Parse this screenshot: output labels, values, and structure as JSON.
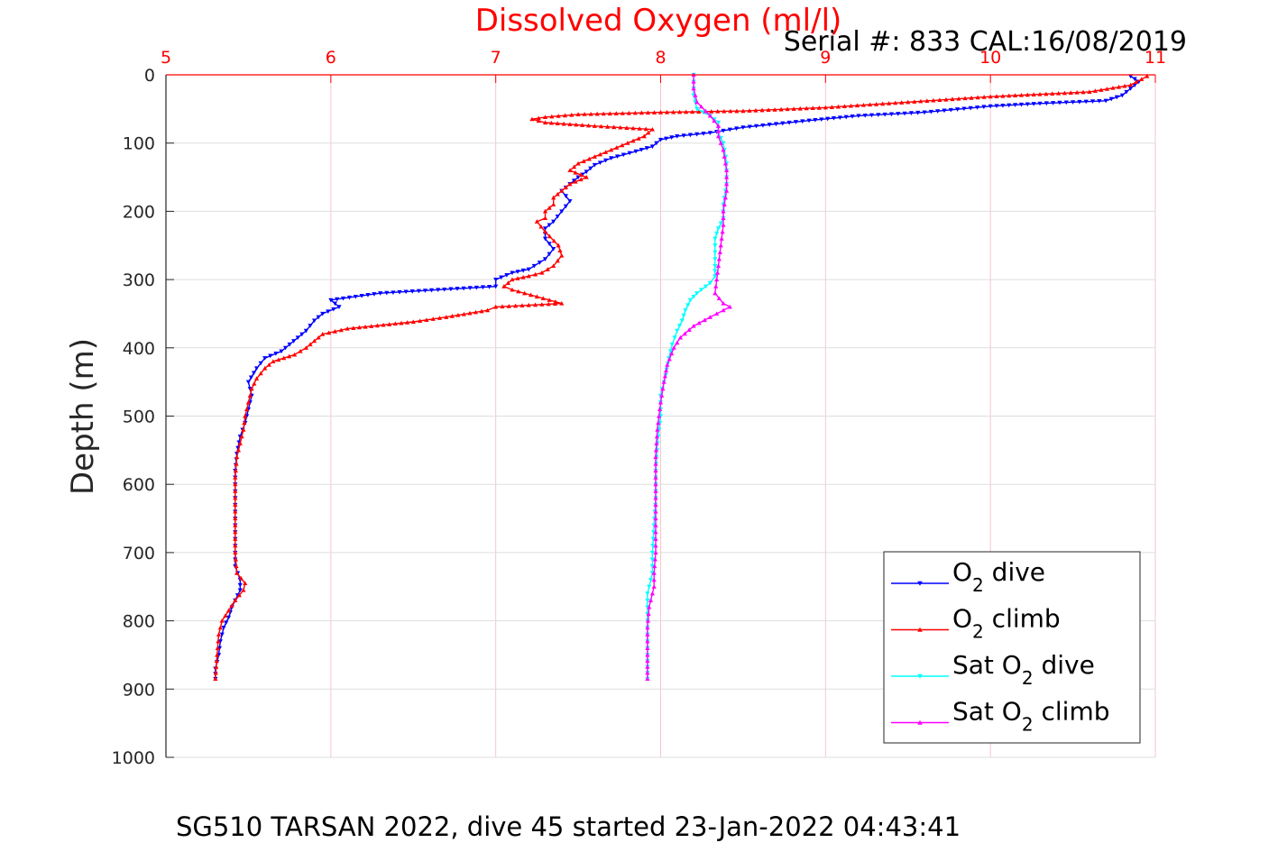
{
  "chart_data": {
    "type": "line",
    "title": "Dissolved Oxygen (ml/l)",
    "serial_note": "Serial #: 833  CAL:16/08/2019",
    "ylabel": "Depth (m)",
    "xlabel": "",
    "footer": "SG510 TARSAN 2022, dive 45 started 23-Jan-2022 04:43:41",
    "xlim": [
      5,
      11
    ],
    "ylim": [
      0,
      1000
    ],
    "y_reversed": true,
    "x_axis_position": "top",
    "grid": true,
    "xticks": [
      "5",
      "6",
      "7",
      "8",
      "9",
      "10",
      "11"
    ],
    "yticks": [
      "0",
      "100",
      "200",
      "300",
      "400",
      "500",
      "600",
      "700",
      "800",
      "900",
      "1000"
    ],
    "legend_position": "bottom-right",
    "legend": [
      {
        "base": "O",
        "sub": "2",
        "prefix": "",
        "suffix": " dive"
      },
      {
        "base": "O",
        "sub": "2",
        "prefix": "",
        "suffix": " climb"
      },
      {
        "base": "O",
        "sub": "2",
        "prefix": "Sat ",
        "suffix": " dive"
      },
      {
        "base": "O",
        "sub": "2",
        "prefix": "Sat ",
        "suffix": " climb"
      }
    ],
    "series": [
      {
        "color": "#0000ff",
        "marker": "triangle-down",
        "points": [
          [
            10.85,
            2
          ],
          [
            10.9,
            10
          ],
          [
            10.85,
            20
          ],
          [
            10.8,
            30
          ],
          [
            10.7,
            38
          ],
          [
            10.3,
            42
          ],
          [
            10.0,
            46
          ],
          [
            9.6,
            55
          ],
          [
            9.2,
            60
          ],
          [
            8.9,
            67
          ],
          [
            8.7,
            72
          ],
          [
            8.5,
            77
          ],
          [
            8.3,
            85
          ],
          [
            8.1,
            90
          ],
          [
            8.0,
            95
          ],
          [
            7.95,
            105
          ],
          [
            7.85,
            112
          ],
          [
            7.7,
            122
          ],
          [
            7.6,
            132
          ],
          [
            7.55,
            142
          ],
          [
            7.5,
            150
          ],
          [
            7.45,
            160
          ],
          [
            7.4,
            170
          ],
          [
            7.45,
            185
          ],
          [
            7.4,
            200
          ],
          [
            7.35,
            215
          ],
          [
            7.3,
            225
          ],
          [
            7.3,
            240
          ],
          [
            7.35,
            255
          ],
          [
            7.3,
            270
          ],
          [
            7.2,
            285
          ],
          [
            7.1,
            290
          ],
          [
            7.0,
            300
          ],
          [
            7.0,
            310
          ],
          [
            6.3,
            320
          ],
          [
            6.0,
            330
          ],
          [
            6.05,
            340
          ],
          [
            5.95,
            350
          ],
          [
            5.9,
            360
          ],
          [
            5.85,
            375
          ],
          [
            5.8,
            385
          ],
          [
            5.75,
            395
          ],
          [
            5.7,
            405
          ],
          [
            5.6,
            415
          ],
          [
            5.55,
            430
          ],
          [
            5.5,
            450
          ],
          [
            5.52,
            470
          ],
          [
            5.5,
            490
          ],
          [
            5.48,
            510
          ],
          [
            5.45,
            530
          ],
          [
            5.43,
            555
          ],
          [
            5.42,
            580
          ],
          [
            5.42,
            600
          ],
          [
            5.42,
            630
          ],
          [
            5.42,
            660
          ],
          [
            5.42,
            690
          ],
          [
            5.42,
            720
          ],
          [
            5.45,
            740
          ],
          [
            5.45,
            755
          ],
          [
            5.42,
            770
          ],
          [
            5.4,
            780
          ],
          [
            5.38,
            795
          ],
          [
            5.35,
            810
          ],
          [
            5.33,
            830
          ],
          [
            5.32,
            850
          ],
          [
            5.3,
            870
          ],
          [
            5.3,
            885
          ]
        ]
      },
      {
        "color": "#ff0000",
        "marker": "triangle-up",
        "points": [
          [
            10.95,
            2
          ],
          [
            10.85,
            15
          ],
          [
            10.6,
            25
          ],
          [
            10.0,
            32
          ],
          [
            9.5,
            40
          ],
          [
            9.0,
            48
          ],
          [
            8.5,
            53
          ],
          [
            8.0,
            55
          ],
          [
            7.5,
            58
          ],
          [
            7.3,
            62
          ],
          [
            7.22,
            65
          ],
          [
            7.3,
            70
          ],
          [
            7.6,
            75
          ],
          [
            7.95,
            80
          ],
          [
            7.9,
            90
          ],
          [
            7.8,
            100
          ],
          [
            7.7,
            110
          ],
          [
            7.6,
            120
          ],
          [
            7.5,
            130
          ],
          [
            7.45,
            140
          ],
          [
            7.55,
            150
          ],
          [
            7.45,
            160
          ],
          [
            7.4,
            170
          ],
          [
            7.35,
            180
          ],
          [
            7.35,
            190
          ],
          [
            7.3,
            200
          ],
          [
            7.3,
            210
          ],
          [
            7.25,
            215
          ],
          [
            7.3,
            230
          ],
          [
            7.38,
            250
          ],
          [
            7.4,
            265
          ],
          [
            7.35,
            280
          ],
          [
            7.28,
            290
          ],
          [
            7.2,
            295
          ],
          [
            7.1,
            300
          ],
          [
            7.05,
            310
          ],
          [
            7.1,
            315
          ],
          [
            7.4,
            335
          ],
          [
            7.0,
            340
          ],
          [
            6.95,
            345
          ],
          [
            6.7,
            355
          ],
          [
            6.5,
            362
          ],
          [
            6.1,
            372
          ],
          [
            5.95,
            380
          ],
          [
            5.9,
            390
          ],
          [
            5.85,
            400
          ],
          [
            5.78,
            410
          ],
          [
            5.65,
            420
          ],
          [
            5.6,
            430
          ],
          [
            5.55,
            445
          ],
          [
            5.52,
            460
          ],
          [
            5.5,
            480
          ],
          [
            5.48,
            500
          ],
          [
            5.47,
            520
          ],
          [
            5.45,
            540
          ],
          [
            5.43,
            560
          ],
          [
            5.42,
            590
          ],
          [
            5.42,
            620
          ],
          [
            5.42,
            660
          ],
          [
            5.42,
            700
          ],
          [
            5.43,
            730
          ],
          [
            5.48,
            745
          ],
          [
            5.47,
            755
          ],
          [
            5.42,
            770
          ],
          [
            5.38,
            785
          ],
          [
            5.34,
            800
          ],
          [
            5.32,
            820
          ],
          [
            5.31,
            850
          ],
          [
            5.3,
            885
          ]
        ]
      },
      {
        "color": "#00ffff",
        "marker": "triangle-down",
        "points": [
          [
            8.2,
            0
          ],
          [
            8.2,
            30
          ],
          [
            8.22,
            50
          ],
          [
            8.3,
            60
          ],
          [
            8.35,
            70
          ],
          [
            8.35,
            85
          ],
          [
            8.38,
            100
          ],
          [
            8.4,
            130
          ],
          [
            8.4,
            160
          ],
          [
            8.38,
            190
          ],
          [
            8.38,
            210
          ],
          [
            8.35,
            225
          ],
          [
            8.33,
            240
          ],
          [
            8.33,
            260
          ],
          [
            8.33,
            280
          ],
          [
            8.33,
            295
          ],
          [
            8.3,
            305
          ],
          [
            8.22,
            320
          ],
          [
            8.18,
            330
          ],
          [
            8.15,
            345
          ],
          [
            8.13,
            360
          ],
          [
            8.1,
            375
          ],
          [
            8.07,
            395
          ],
          [
            8.05,
            415
          ],
          [
            8.03,
            440
          ],
          [
            8.0,
            470
          ],
          [
            8.0,
            500
          ],
          [
            7.98,
            540
          ],
          [
            7.97,
            580
          ],
          [
            7.97,
            620
          ],
          [
            7.96,
            660
          ],
          [
            7.95,
            700
          ],
          [
            7.95,
            730
          ],
          [
            7.92,
            760
          ],
          [
            7.92,
            800
          ],
          [
            7.92,
            850
          ],
          [
            7.92,
            885
          ]
        ]
      },
      {
        "color": "#ff00ff",
        "marker": "triangle-up",
        "points": [
          [
            8.2,
            0
          ],
          [
            8.2,
            20
          ],
          [
            8.22,
            40
          ],
          [
            8.3,
            60
          ],
          [
            8.35,
            75
          ],
          [
            8.35,
            90
          ],
          [
            8.38,
            110
          ],
          [
            8.4,
            140
          ],
          [
            8.4,
            170
          ],
          [
            8.38,
            200
          ],
          [
            8.38,
            220
          ],
          [
            8.37,
            240
          ],
          [
            8.36,
            260
          ],
          [
            8.35,
            280
          ],
          [
            8.34,
            300
          ],
          [
            8.33,
            320
          ],
          [
            8.38,
            335
          ],
          [
            8.42,
            340
          ],
          [
            8.38,
            345
          ],
          [
            8.3,
            355
          ],
          [
            8.2,
            368
          ],
          [
            8.12,
            385
          ],
          [
            8.08,
            400
          ],
          [
            8.04,
            425
          ],
          [
            8.02,
            450
          ],
          [
            8.0,
            480
          ],
          [
            7.98,
            520
          ],
          [
            7.97,
            560
          ],
          [
            7.97,
            600
          ],
          [
            7.97,
            650
          ],
          [
            7.97,
            700
          ],
          [
            7.96,
            730
          ],
          [
            7.96,
            750
          ],
          [
            7.93,
            780
          ],
          [
            7.92,
            810
          ],
          [
            7.92,
            850
          ],
          [
            7.92,
            885
          ]
        ]
      }
    ]
  }
}
